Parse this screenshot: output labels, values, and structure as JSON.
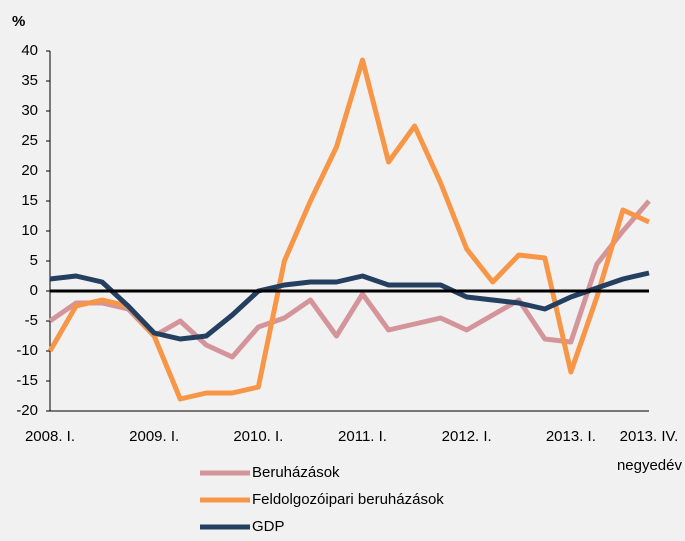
{
  "chart_data": {
    "type": "line",
    "y_axis_label": "%",
    "x_axis_label": "negyedév",
    "categories": [
      "2008. I.",
      null,
      null,
      null,
      "2009. I.",
      null,
      null,
      null,
      "2010. I.",
      null,
      null,
      null,
      "2011. I.",
      null,
      null,
      null,
      "2012. I.",
      null,
      null,
      null,
      "2013. I.",
      null,
      null,
      "2013. IV."
    ],
    "series": [
      {
        "name": "Beruházások",
        "color": "#d4959a",
        "values": [
          -5,
          -2,
          -2,
          -3,
          -7.5,
          -5,
          -9,
          -11,
          -6,
          -4.5,
          -1.5,
          -7.5,
          -0.5,
          -6.5,
          -5.5,
          -4.5,
          -6.5,
          -4,
          -1.5,
          -8,
          -8.5,
          4.5,
          10,
          15
        ]
      },
      {
        "name": "Feldolgozóipari beruházások",
        "color": "#f79646",
        "values": [
          -10,
          -2.5,
          -1.5,
          -2.5,
          -7.5,
          -18,
          -17,
          -17,
          -16,
          5,
          15,
          24,
          38.5,
          21.5,
          27.5,
          18,
          7,
          1.5,
          6,
          5.5,
          -13.5,
          -1,
          13.5,
          11.5
        ]
      },
      {
        "name": "GDP",
        "color": "#243f60",
        "values": [
          2,
          2.5,
          1.5,
          -2.5,
          -7,
          -8,
          -7.5,
          -4,
          0,
          1,
          1.5,
          1.5,
          2.5,
          1,
          1,
          1,
          -1,
          -1.5,
          -2,
          -3,
          -1,
          0.5,
          2,
          3
        ]
      }
    ],
    "ylim": [
      -20,
      40
    ],
    "yticks": [
      -20,
      -15,
      -10,
      -5,
      0,
      5,
      10,
      15,
      20,
      25,
      30,
      35,
      40
    ],
    "grid": false
  }
}
